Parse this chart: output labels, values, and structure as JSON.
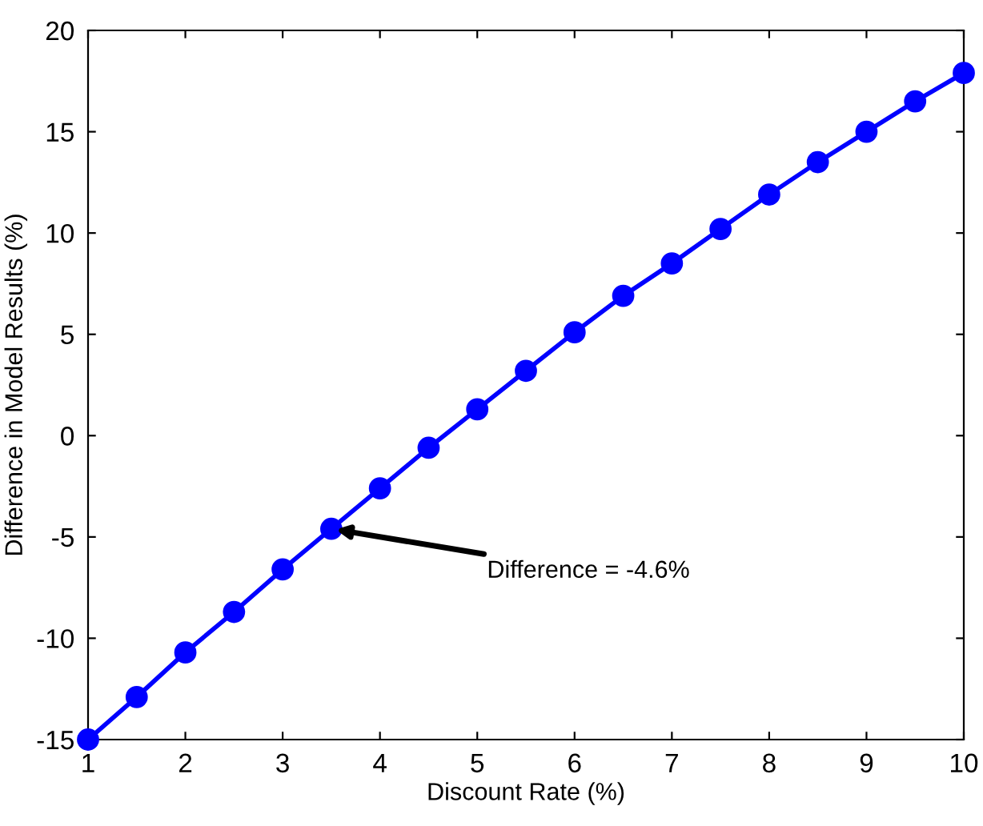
{
  "chart_data": {
    "type": "line",
    "xlabel": "Discount Rate (%)",
    "ylabel": "Difference in Model Results (%)",
    "x": [
      1,
      1.5,
      2,
      2.5,
      3,
      3.5,
      4,
      4.5,
      5,
      5.5,
      6,
      6.5,
      7,
      7.5,
      8,
      8.5,
      9,
      9.5,
      10
    ],
    "series": [
      {
        "color": "#0000ff",
        "values": [
          -15.0,
          -12.9,
          -10.7,
          -8.7,
          -6.6,
          -4.6,
          -2.6,
          -0.6,
          1.3,
          3.2,
          5.1,
          6.9,
          8.5,
          10.2,
          11.9,
          13.5,
          15.0,
          16.5,
          17.9
        ]
      }
    ],
    "marker": "circle",
    "line_style": "solid",
    "grid": false,
    "legend": false,
    "xlim": [
      1,
      10
    ],
    "ylim": [
      -15,
      20
    ],
    "xticks": [
      1,
      2,
      3,
      4,
      5,
      6,
      7,
      8,
      9,
      10
    ],
    "yticks": [
      -15,
      -10,
      -5,
      0,
      5,
      10,
      15,
      20
    ],
    "annotations": [
      {
        "text": "Difference = -4.6%",
        "x": 3.5,
        "y": -4.6
      }
    ]
  }
}
